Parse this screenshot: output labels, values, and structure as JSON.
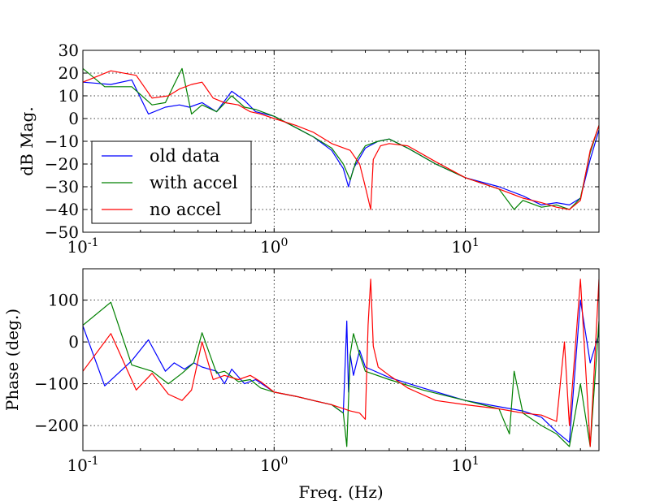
{
  "chart_data": [
    {
      "type": "line",
      "xscale": "log",
      "xlim": [
        0.1,
        50
      ],
      "ylim": [
        -50,
        30
      ],
      "ylabel": "dB Mag.",
      "xlabel": "",
      "grid": true,
      "legend": {
        "placement": "lower-left"
      },
      "x_tick_labels": [
        {
          "base": "10",
          "exp": "-1"
        },
        {
          "base": "10",
          "exp": "0"
        },
        {
          "base": "10",
          "exp": "1"
        }
      ],
      "y_ticks": [
        30,
        20,
        10,
        0,
        -10,
        -20,
        -30,
        -40,
        -50
      ],
      "series": [
        {
          "name": "old data",
          "color": "#0000ff",
          "x": [
            0.1,
            0.14,
            0.18,
            0.22,
            0.27,
            0.32,
            0.36,
            0.42,
            0.5,
            0.6,
            0.7,
            0.8,
            1.0,
            1.3,
            1.6,
            2.0,
            2.3,
            2.45,
            2.6,
            3.0,
            3.5,
            4.0,
            5.0,
            7.0,
            10,
            15,
            20,
            25,
            30,
            35,
            40,
            45,
            50
          ],
          "y": [
            16,
            15,
            17,
            2,
            5,
            6,
            5,
            7,
            3,
            12,
            8,
            3,
            1,
            -4,
            -8,
            -14,
            -22,
            -30,
            -22,
            -13,
            -10,
            -9,
            -13,
            -20,
            -26,
            -30,
            -34,
            -38,
            -37,
            -38,
            -35,
            -18,
            -5
          ]
        },
        {
          "name": "with accel",
          "color": "#008000",
          "x": [
            0.1,
            0.13,
            0.18,
            0.23,
            0.27,
            0.3,
            0.33,
            0.37,
            0.42,
            0.5,
            0.6,
            0.7,
            0.8,
            1.0,
            1.3,
            1.6,
            2.0,
            2.3,
            2.5,
            2.7,
            3.0,
            3.5,
            4.0,
            5.0,
            7.0,
            10,
            15,
            18,
            20,
            25,
            30,
            35,
            40,
            45,
            50
          ],
          "y": [
            22,
            14,
            14,
            6,
            7,
            15,
            22,
            2,
            6,
            3,
            10,
            5,
            4,
            1,
            -4,
            -8,
            -13,
            -20,
            -27,
            -18,
            -12,
            -10,
            -9,
            -13,
            -20,
            -26,
            -31,
            -40,
            -36,
            -39,
            -38,
            -40,
            -35,
            -15,
            -3
          ]
        },
        {
          "name": "no accel",
          "color": "#ff0000",
          "x": [
            0.1,
            0.14,
            0.19,
            0.23,
            0.28,
            0.32,
            0.37,
            0.42,
            0.48,
            0.55,
            0.65,
            0.75,
            0.85,
            1.0,
            1.3,
            1.6,
            2.0,
            2.5,
            2.8,
            3.0,
            3.2,
            3.3,
            3.6,
            4.0,
            5.0,
            7.0,
            10,
            15,
            20,
            25,
            30,
            35,
            40,
            45,
            50
          ],
          "y": [
            16,
            21,
            19,
            9,
            10,
            13,
            15,
            16,
            9,
            7,
            6,
            3,
            2,
            0,
            -3,
            -6,
            -11,
            -14,
            -20,
            -30,
            -40,
            -18,
            -12,
            -11,
            -12,
            -19,
            -26,
            -31,
            -35,
            -37,
            -39,
            -40,
            -36,
            -14,
            -3
          ]
        }
      ]
    },
    {
      "type": "line",
      "xscale": "log",
      "xlim": [
        0.1,
        50
      ],
      "ylim": [
        -260,
        175
      ],
      "ylabel": "Phase (deg.)",
      "xlabel": "Freq. (Hz)",
      "grid": true,
      "x_tick_labels": [
        {
          "base": "10",
          "exp": "-1"
        },
        {
          "base": "10",
          "exp": "0"
        },
        {
          "base": "10",
          "exp": "1"
        }
      ],
      "y_ticks": [
        100,
        0,
        -100,
        -200
      ],
      "series": [
        {
          "name": "old data",
          "color": "#0000ff",
          "x": [
            0.1,
            0.13,
            0.18,
            0.22,
            0.27,
            0.3,
            0.34,
            0.38,
            0.42,
            0.5,
            0.55,
            0.6,
            0.7,
            0.8,
            1.0,
            1.3,
            1.6,
            2.0,
            2.3,
            2.4,
            2.45,
            2.5,
            2.6,
            2.8,
            3.0,
            4.0,
            6.0,
            10,
            15,
            20,
            25,
            30,
            35,
            40,
            45,
            50
          ],
          "y": [
            38,
            -105,
            -45,
            5,
            -70,
            -50,
            -65,
            -50,
            -60,
            -70,
            -100,
            -65,
            -100,
            -90,
            -120,
            -130,
            -140,
            -150,
            -170,
            50,
            -120,
            -30,
            -80,
            -20,
            -60,
            -85,
            -110,
            -140,
            -155,
            -165,
            -180,
            -215,
            -240,
            100,
            -50,
            20
          ]
        },
        {
          "name": "with accel",
          "color": "#008000",
          "x": [
            0.1,
            0.14,
            0.18,
            0.23,
            0.28,
            0.33,
            0.38,
            0.42,
            0.5,
            0.55,
            0.65,
            0.75,
            0.85,
            1.0,
            1.3,
            1.6,
            2.0,
            2.3,
            2.4,
            2.5,
            2.6,
            2.8,
            3.0,
            4.0,
            6.0,
            10,
            15,
            17,
            18,
            20,
            25,
            30,
            35,
            40,
            45,
            50
          ],
          "y": [
            40,
            95,
            -55,
            -70,
            -100,
            -75,
            -50,
            22,
            -75,
            -70,
            -95,
            -90,
            -110,
            -120,
            -130,
            -140,
            -150,
            -170,
            -250,
            -30,
            20,
            -30,
            -70,
            -90,
            -115,
            -140,
            -160,
            -220,
            -70,
            -170,
            -200,
            -220,
            -250,
            -100,
            -250,
            50
          ]
        },
        {
          "name": "no accel",
          "color": "#ff0000",
          "x": [
            0.1,
            0.14,
            0.19,
            0.23,
            0.28,
            0.33,
            0.37,
            0.42,
            0.48,
            0.55,
            0.65,
            0.75,
            0.85,
            1.0,
            1.3,
            1.6,
            2.0,
            2.5,
            2.8,
            3.0,
            3.1,
            3.2,
            3.3,
            3.5,
            4.0,
            5.0,
            7.0,
            10,
            15,
            20,
            25,
            30,
            33,
            35,
            40,
            45,
            50
          ],
          "y": [
            -70,
            20,
            -115,
            -75,
            -125,
            -140,
            -115,
            0,
            -90,
            -80,
            -90,
            -80,
            -95,
            -120,
            -130,
            -140,
            -150,
            -165,
            -170,
            -185,
            40,
            150,
            -10,
            -60,
            -80,
            -110,
            -140,
            -150,
            -160,
            -170,
            -175,
            -190,
            0,
            -200,
            150,
            -250,
            150
          ]
        }
      ]
    }
  ]
}
